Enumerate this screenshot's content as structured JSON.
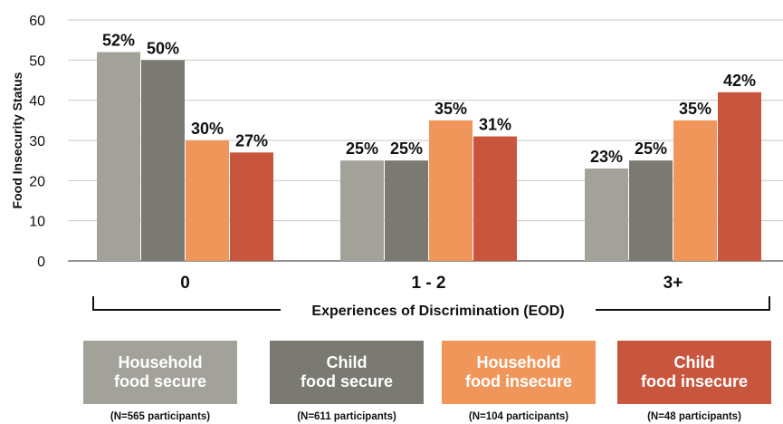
{
  "chart_data": {
    "type": "bar",
    "ylabel": "Food Insecurity Status",
    "xlabel": "Experiences of Discrimination (EOD)",
    "ylim": [
      0,
      60
    ],
    "yticks": [
      "0",
      "10",
      "20",
      "30",
      "40",
      "50",
      "60"
    ],
    "grid": true,
    "categories": [
      "0",
      "1 - 2",
      "3+"
    ],
    "series": [
      {
        "name": "Household food secure",
        "color": "#a3a29a",
        "values": [
          52,
          25,
          23
        ],
        "labels": [
          "52%",
          "25%",
          "23%"
        ]
      },
      {
        "name": "Child food secure",
        "color": "#7a7a72",
        "values": [
          50,
          25,
          25
        ],
        "labels": [
          "50%",
          "25%",
          "25%"
        ]
      },
      {
        "name": "Household food insecure",
        "color": "#f0965a",
        "values": [
          30,
          35,
          35
        ],
        "labels": [
          "30%",
          "35%",
          "35%"
        ]
      },
      {
        "name": "Child food insecure",
        "color": "#c8553d",
        "values": [
          27,
          31,
          42
        ],
        "labels": [
          "27%",
          "31%",
          "42%"
        ]
      }
    ]
  },
  "legend": [
    {
      "line1": "Household",
      "line2": "food secure",
      "note": "(N=565 participants)",
      "color": "#a3a29a"
    },
    {
      "line1": "Child",
      "line2": "food secure",
      "note": "(N=611 participants)",
      "color": "#7a7a72"
    },
    {
      "line1": "Household",
      "line2": "food insecure",
      "note": "(N=104 participants)",
      "color": "#f0965a"
    },
    {
      "line1": "Child",
      "line2": "food insecure",
      "note": "(N=48 participants)",
      "color": "#c8553d"
    }
  ]
}
